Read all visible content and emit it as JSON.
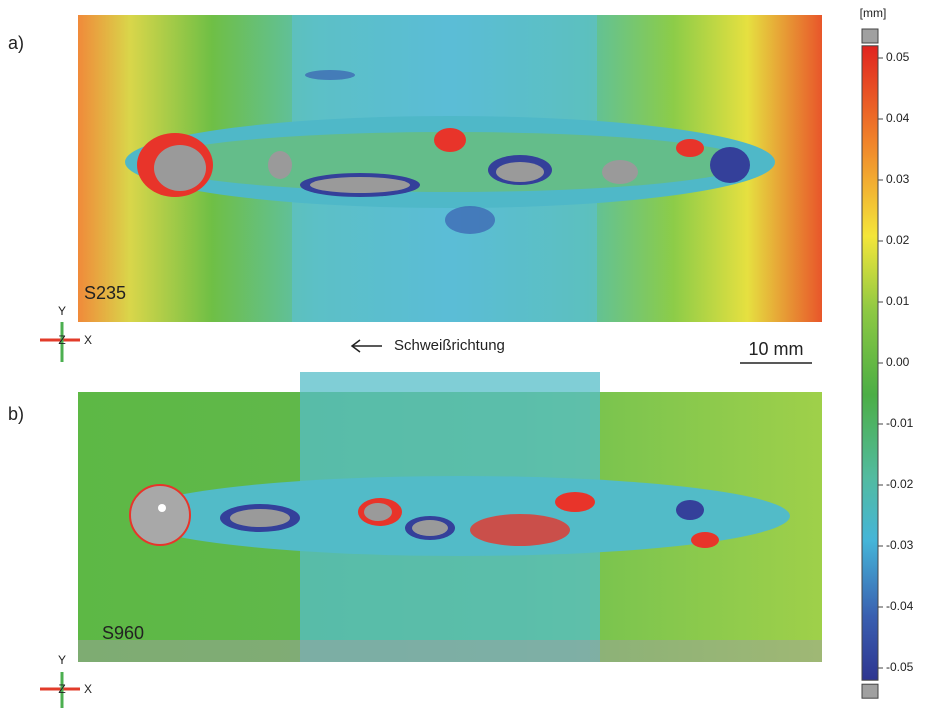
{
  "panels": [
    {
      "label": "a)",
      "sample": "S235"
    },
    {
      "label": "b)",
      "sample": "S960"
    }
  ],
  "axis_labels": [
    "Y",
    "Z",
    "X"
  ],
  "direction": "Schweißrichtung",
  "scale_bar": "10 mm",
  "colorbar": {
    "unit": "[mm]",
    "lim": [
      -0.052,
      0.052
    ],
    "ticks": [
      0.05,
      0.04,
      0.03,
      0.02,
      0.01,
      {
        "value": 0,
        "label": "0.00"
      },
      -0.01,
      -0.02,
      -0.03,
      -0.04,
      -0.05
    ]
  }
}
